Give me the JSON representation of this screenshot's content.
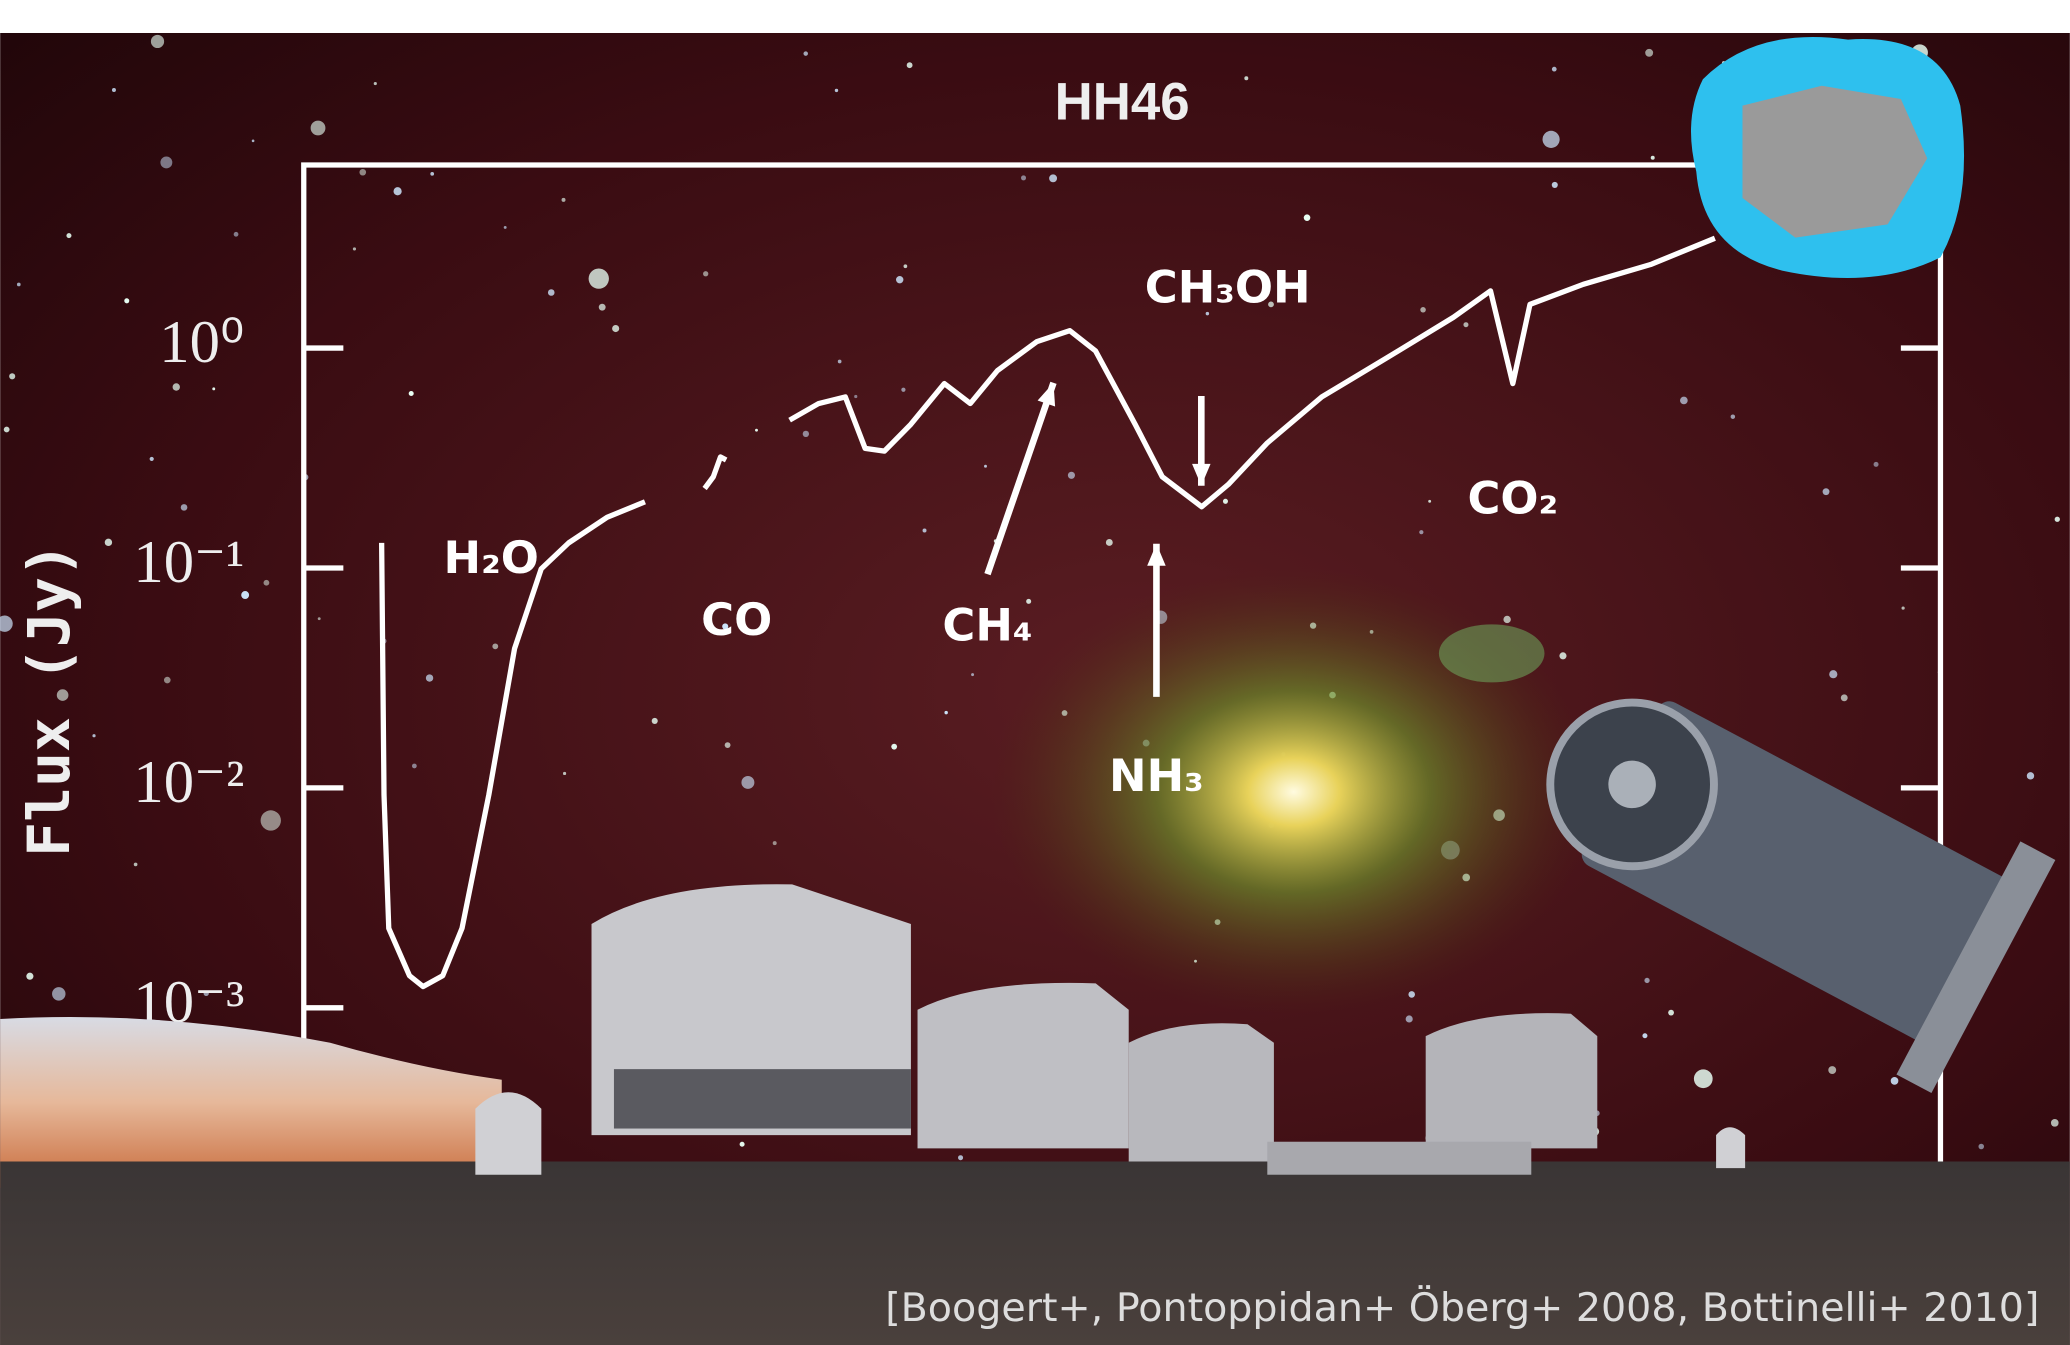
{
  "chart_data": {
    "type": "line",
    "title": "HH46",
    "ylabel": "Flux (Jy)",
    "log_x": true,
    "log_y": true,
    "xlim": [
      2.51,
      29
    ],
    "ylim": [
      0.0002,
      6.8
    ],
    "yticks": [
      {
        "value": 1,
        "label": "10⁰"
      },
      {
        "value": 0.1,
        "label": "10⁻¹"
      },
      {
        "value": 0.01,
        "label": "10⁻²"
      },
      {
        "value": 0.001,
        "label": "10⁻³"
      }
    ],
    "series": [
      {
        "name": "HH46",
        "color": "#ffffff",
        "x": [
          2.82,
          2.83,
          2.85,
          2.94,
          3.0,
          3.09,
          3.18,
          3.31,
          3.44,
          3.58,
          3.73,
          3.95,
          4.18,
          4.4,
          4.57,
          4.63,
          4.68,
          4.72,
          4.9,
          5.19,
          5.42,
          5.64,
          5.81,
          5.98,
          6.22,
          6.54,
          6.8,
          7.08,
          7.51,
          7.89,
          8.2,
          8.7,
          9.06,
          9.61,
          10.0,
          10.6,
          11.5,
          12.7,
          14.0,
          14.8,
          15.3,
          15.7,
          17.0,
          18.8,
          20.7
        ],
        "values": [
          0.13,
          0.0093,
          0.0023,
          0.0014,
          0.00125,
          0.0014,
          0.0023,
          0.0093,
          0.043,
          0.099,
          0.13,
          0.17,
          0.2,
          null,
          0.23,
          0.26,
          0.32,
          0.31,
          null,
          0.47,
          0.56,
          0.6,
          0.35,
          0.34,
          0.45,
          0.69,
          0.56,
          0.79,
          1.07,
          1.2,
          0.97,
          0.45,
          0.26,
          0.19,
          0.24,
          0.37,
          0.6,
          0.91,
          1.38,
          1.82,
          0.69,
          1.58,
          1.95,
          2.4,
          3.16
        ]
      }
    ],
    "annotations": [
      "H₂O",
      "CO",
      "CH₄",
      "CH₃OH",
      "NH₃",
      "CO₂"
    ],
    "citation": "[Boogert+, Pontoppidan+ Öberg+ 2008, Bottinelli+ 2010]"
  }
}
